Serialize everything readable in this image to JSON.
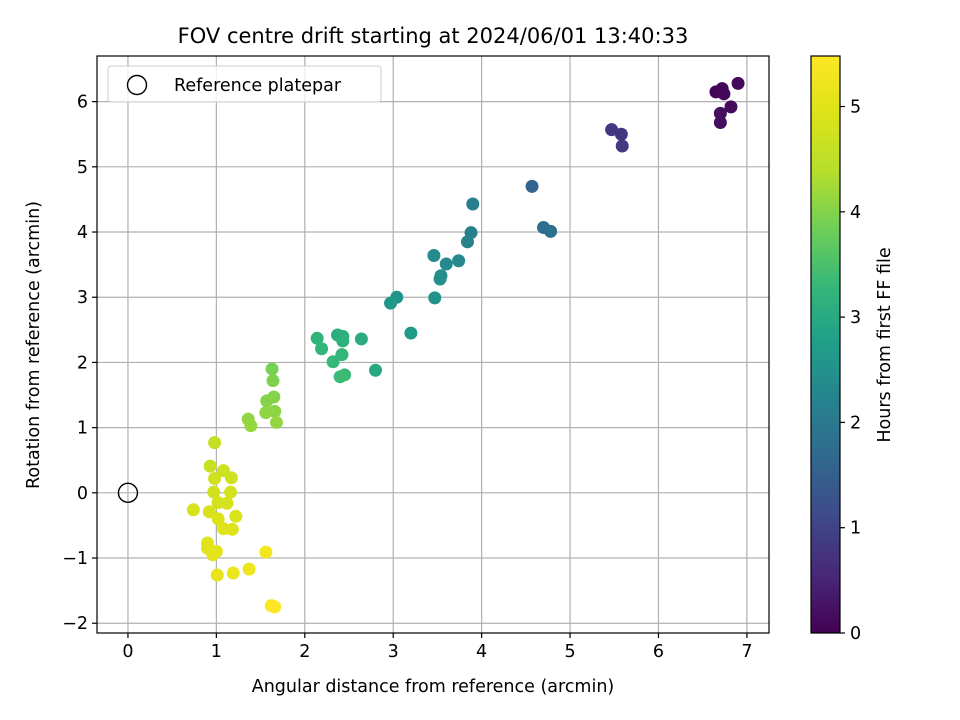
{
  "chart_data": {
    "type": "scatter",
    "title": "FOV centre drift starting at 2024/06/01 13:40:33",
    "xlabel": "Angular distance from reference (arcmin)",
    "ylabel": "Rotation from reference (arcmin)",
    "xlim": [
      -0.35,
      7.25
    ],
    "ylim": [
      -2.15,
      6.7
    ],
    "xticks": [
      0,
      1,
      2,
      3,
      4,
      5,
      6,
      7
    ],
    "yticks": [
      -2,
      -1,
      0,
      1,
      2,
      3,
      4,
      5,
      6
    ],
    "grid": true,
    "legend": {
      "placement": "upper-left",
      "entries": [
        "Reference platepar"
      ]
    },
    "reference_point": {
      "x": 0,
      "y": 0
    },
    "colorbar": {
      "label": "Hours from first FF file",
      "colormap": "viridis",
      "range": [
        0,
        5.48
      ],
      "ticks": [
        0,
        1,
        2,
        3,
        4,
        5
      ]
    },
    "points": [
      {
        "x": 6.65,
        "y": 6.15,
        "c": 0.05
      },
      {
        "x": 6.72,
        "y": 6.2,
        "c": 0.08
      },
      {
        "x": 6.74,
        "y": 6.12,
        "c": 0.1
      },
      {
        "x": 6.9,
        "y": 6.28,
        "c": 0.12
      },
      {
        "x": 6.82,
        "y": 5.92,
        "c": 0.15
      },
      {
        "x": 6.7,
        "y": 5.82,
        "c": 0.18
      },
      {
        "x": 6.7,
        "y": 5.68,
        "c": 0.2
      },
      {
        "x": 5.47,
        "y": 5.57,
        "c": 0.78
      },
      {
        "x": 5.58,
        "y": 5.5,
        "c": 0.82
      },
      {
        "x": 5.59,
        "y": 5.32,
        "c": 0.86
      },
      {
        "x": 4.57,
        "y": 4.7,
        "c": 1.58
      },
      {
        "x": 4.7,
        "y": 4.07,
        "c": 1.75
      },
      {
        "x": 4.78,
        "y": 4.01,
        "c": 1.8
      },
      {
        "x": 3.9,
        "y": 4.43,
        "c": 2.12
      },
      {
        "x": 3.88,
        "y": 3.99,
        "c": 2.18
      },
      {
        "x": 3.84,
        "y": 3.85,
        "c": 2.22
      },
      {
        "x": 3.74,
        "y": 3.56,
        "c": 2.3
      },
      {
        "x": 3.6,
        "y": 3.51,
        "c": 2.35
      },
      {
        "x": 3.46,
        "y": 3.64,
        "c": 2.38
      },
      {
        "x": 3.54,
        "y": 3.33,
        "c": 2.42
      },
      {
        "x": 3.53,
        "y": 3.28,
        "c": 2.45
      },
      {
        "x": 3.47,
        "y": 2.99,
        "c": 2.5
      },
      {
        "x": 3.04,
        "y": 3.0,
        "c": 2.55
      },
      {
        "x": 2.97,
        "y": 2.91,
        "c": 2.6
      },
      {
        "x": 3.2,
        "y": 2.45,
        "c": 2.68
      },
      {
        "x": 2.8,
        "y": 1.88,
        "c": 2.95
      },
      {
        "x": 2.64,
        "y": 2.36,
        "c": 3.02
      },
      {
        "x": 2.37,
        "y": 2.42,
        "c": 3.1
      },
      {
        "x": 2.43,
        "y": 2.4,
        "c": 3.12
      },
      {
        "x": 2.43,
        "y": 2.33,
        "c": 3.15
      },
      {
        "x": 2.14,
        "y": 2.37,
        "c": 3.2
      },
      {
        "x": 2.19,
        "y": 2.21,
        "c": 3.22
      },
      {
        "x": 2.42,
        "y": 2.12,
        "c": 3.26
      },
      {
        "x": 2.32,
        "y": 2.01,
        "c": 3.3
      },
      {
        "x": 2.45,
        "y": 1.81,
        "c": 3.34
      },
      {
        "x": 2.4,
        "y": 1.78,
        "c": 3.36
      },
      {
        "x": 1.63,
        "y": 1.9,
        "c": 3.9
      },
      {
        "x": 1.64,
        "y": 1.72,
        "c": 3.95
      },
      {
        "x": 1.65,
        "y": 1.47,
        "c": 4.0
      },
      {
        "x": 1.57,
        "y": 1.41,
        "c": 4.02
      },
      {
        "x": 1.66,
        "y": 1.25,
        "c": 4.05
      },
      {
        "x": 1.56,
        "y": 1.23,
        "c": 4.08
      },
      {
        "x": 1.36,
        "y": 1.13,
        "c": 4.1
      },
      {
        "x": 1.68,
        "y": 1.08,
        "c": 4.12
      },
      {
        "x": 1.39,
        "y": 1.03,
        "c": 4.15
      },
      {
        "x": 0.98,
        "y": 0.77,
        "c": 4.6
      },
      {
        "x": 0.93,
        "y": 0.41,
        "c": 4.65
      },
      {
        "x": 1.08,
        "y": 0.34,
        "c": 4.7
      },
      {
        "x": 1.17,
        "y": 0.23,
        "c": 4.72
      },
      {
        "x": 0.98,
        "y": 0.22,
        "c": 4.74
      },
      {
        "x": 0.97,
        "y": 0.01,
        "c": 4.76
      },
      {
        "x": 1.16,
        "y": 0.01,
        "c": 4.78
      },
      {
        "x": 1.02,
        "y": -0.15,
        "c": 4.8
      },
      {
        "x": 1.12,
        "y": -0.16,
        "c": 4.82
      },
      {
        "x": 0.74,
        "y": -0.26,
        "c": 4.84
      },
      {
        "x": 0.92,
        "y": -0.29,
        "c": 4.86
      },
      {
        "x": 1.22,
        "y": -0.36,
        "c": 4.88
      },
      {
        "x": 1.02,
        "y": -0.4,
        "c": 4.9
      },
      {
        "x": 1.08,
        "y": -0.55,
        "c": 4.92
      },
      {
        "x": 1.18,
        "y": -0.56,
        "c": 4.94
      },
      {
        "x": 0.9,
        "y": -0.77,
        "c": 4.97
      },
      {
        "x": 0.9,
        "y": -0.85,
        "c": 5.0
      },
      {
        "x": 1.0,
        "y": -0.9,
        "c": 5.02
      },
      {
        "x": 0.96,
        "y": -0.95,
        "c": 5.04
      },
      {
        "x": 1.01,
        "y": -1.26,
        "c": 5.1
      },
      {
        "x": 1.19,
        "y": -1.23,
        "c": 5.15
      },
      {
        "x": 1.37,
        "y": -1.17,
        "c": 5.2
      },
      {
        "x": 1.56,
        "y": -0.91,
        "c": 5.3
      },
      {
        "x": 1.62,
        "y": -1.73,
        "c": 5.43
      },
      {
        "x": 1.66,
        "y": -1.75,
        "c": 5.48
      }
    ]
  }
}
